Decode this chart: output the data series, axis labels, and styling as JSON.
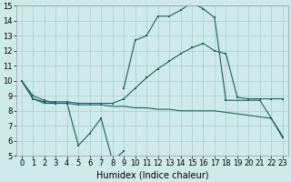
{
  "background_color": "#ceeaea",
  "grid_color": "#aacece",
  "line_color": "#1a6060",
  "xlabel": "Humidex (Indice chaleur)",
  "xlim": [
    -0.5,
    23.5
  ],
  "ylim": [
    5,
    15
  ],
  "xticks": [
    0,
    1,
    2,
    3,
    4,
    5,
    6,
    7,
    8,
    9,
    10,
    11,
    12,
    13,
    14,
    15,
    16,
    17,
    18,
    19,
    20,
    21,
    22,
    23
  ],
  "yticks": [
    5,
    6,
    7,
    8,
    9,
    10,
    11,
    12,
    13,
    14,
    15
  ],
  "line1_x": [
    0,
    1,
    2,
    3,
    4,
    5,
    6,
    7,
    8,
    9
  ],
  "line1_y": [
    10,
    9,
    8.7,
    8.5,
    8.5,
    5.7,
    6.5,
    7.5,
    4.7,
    5.3
  ],
  "line2_x": [
    9,
    10,
    11,
    12,
    13,
    14,
    15,
    16,
    17,
    18,
    21,
    22,
    23
  ],
  "line2_y": [
    9.5,
    12.7,
    13,
    14.3,
    14.3,
    14.7,
    15.2,
    14.8,
    14.2,
    8.7,
    8.7,
    7.5,
    6.2
  ],
  "line3_x": [
    0,
    1,
    2,
    3,
    4,
    5,
    6,
    7,
    8,
    9,
    10,
    11,
    12,
    13,
    14,
    15,
    16,
    17,
    18,
    19,
    20,
    21,
    22,
    23
  ],
  "line3_y": [
    10,
    8.8,
    8.6,
    8.6,
    8.6,
    8.5,
    8.5,
    8.5,
    8.5,
    8.8,
    9.5,
    10.2,
    10.8,
    11.3,
    11.8,
    12.2,
    12.5,
    12.0,
    11.8,
    8.9,
    8.8,
    8.8,
    8.8,
    8.8
  ],
  "line4_x": [
    0,
    1,
    2,
    3,
    4,
    5,
    6,
    7,
    8,
    9,
    10,
    11,
    12,
    13,
    14,
    15,
    16,
    17,
    18,
    19,
    20,
    21,
    22,
    23
  ],
  "line4_y": [
    10,
    8.8,
    8.5,
    8.5,
    8.5,
    8.4,
    8.4,
    8.4,
    8.3,
    8.3,
    8.2,
    8.2,
    8.1,
    8.1,
    8.0,
    8.0,
    8.0,
    8.0,
    7.9,
    7.8,
    7.7,
    7.6,
    7.5,
    6.3
  ],
  "fontsize_label": 7,
  "fontsize_tick": 6
}
